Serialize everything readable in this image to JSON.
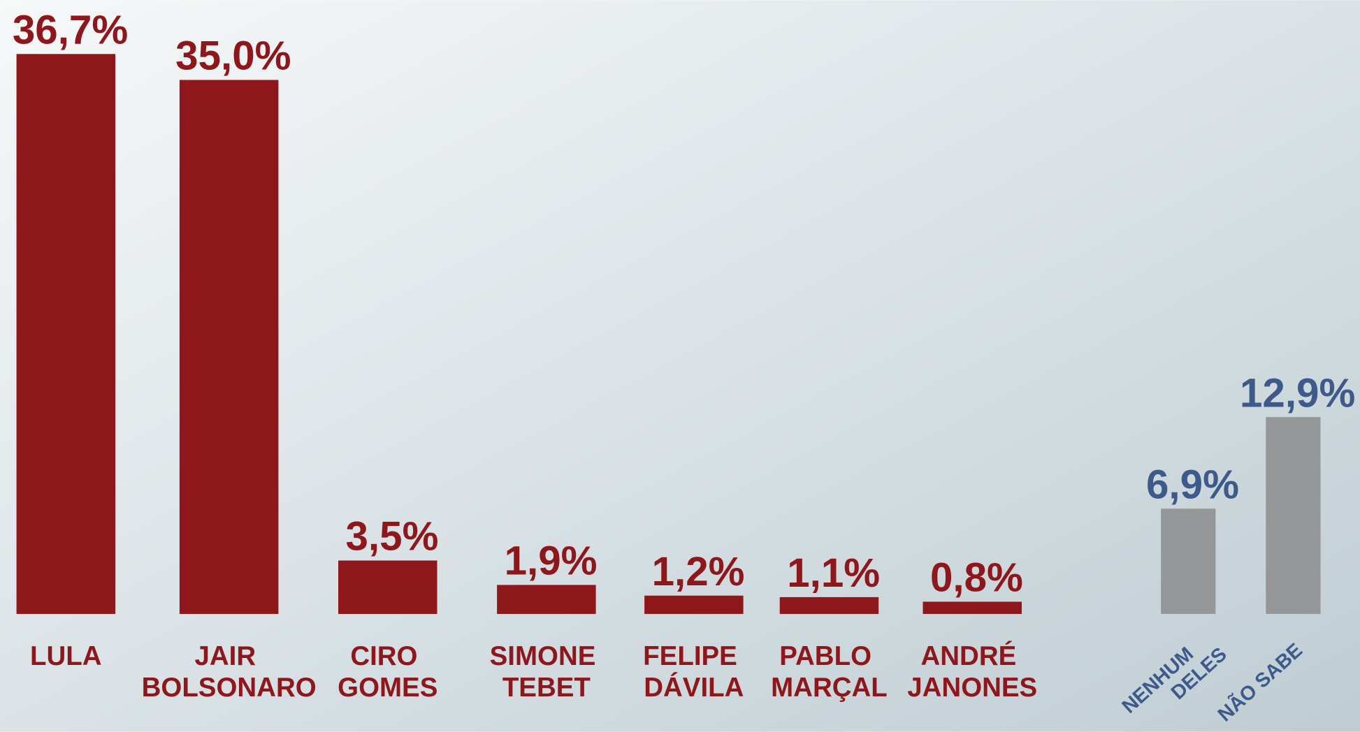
{
  "chart_data": {
    "type": "bar",
    "categories": [
      "LULA",
      "JAIR BOLSONARO",
      "CIRO GOMES",
      "SIMONE TEBET",
      "FELIPE DÁVILA",
      "PABLO MARÇAL",
      "ANDRÉ JANONES",
      "NENHUM DELES",
      "NÃO SABE"
    ],
    "values": [
      36.7,
      35.0,
      3.5,
      1.9,
      1.2,
      1.1,
      0.8,
      6.9,
      12.9
    ],
    "value_labels": [
      "36,7%",
      "35,0%",
      "3,5%",
      "1,9%",
      "1,2%",
      "1,1%",
      "0,8%",
      "6,9%",
      "12,9%"
    ],
    "colors": [
      "#8e171c",
      "#8e171c",
      "#8e171c",
      "#8e171c",
      "#8e171c",
      "#8e171c",
      "#8e171c",
      "#959697",
      "#959697"
    ],
    "label_colors": [
      "#8e171c",
      "#8e171c",
      "#8e171c",
      "#8e171c",
      "#8e171c",
      "#8e171c",
      "#8e171c",
      "#3e5a8a",
      "#3e5a8a"
    ]
  }
}
